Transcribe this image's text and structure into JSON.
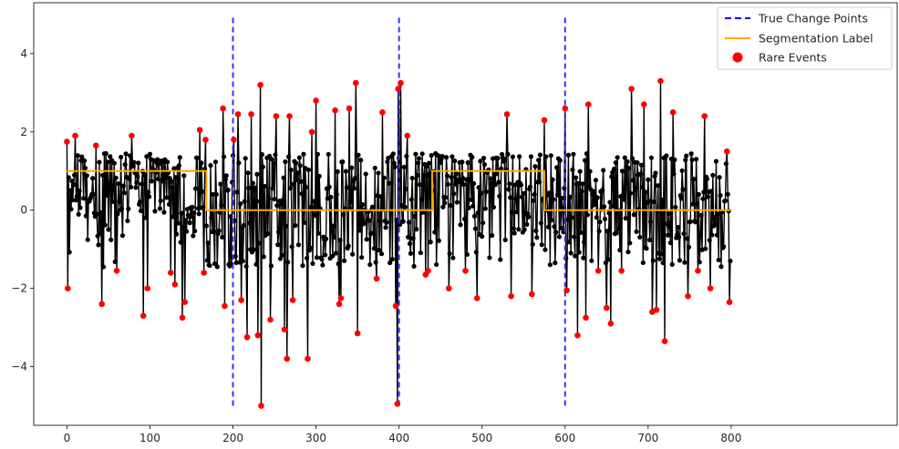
{
  "chart_data": {
    "type": "line",
    "title": "",
    "xlabel": "",
    "ylabel": "",
    "xlim": [
      -40,
      1000
    ],
    "ylim": [
      -5.5,
      5.3
    ],
    "x_ticks": [
      0,
      100,
      200,
      300,
      400,
      500,
      600,
      700,
      800
    ],
    "y_ticks": [
      -4,
      -2,
      0,
      2,
      4
    ],
    "grid": false,
    "legend_position": "top-right",
    "colors": {
      "signal": "#000000",
      "change_points": "#3333ff",
      "segmentation": "#ffa500",
      "rare_events": "#ff0000"
    },
    "legend": [
      {
        "label": "True Change Points",
        "style": "dashed-line",
        "color": "#0000ff"
      },
      {
        "label": "Segmentation Label",
        "style": "line",
        "color": "#ffa500"
      },
      {
        "label": "Rare Events",
        "style": "marker",
        "color": "#ff0000"
      }
    ],
    "change_points": {
      "name": "True Change Points",
      "x": [
        200,
        400,
        600
      ],
      "y_range": [
        -5,
        5
      ]
    },
    "segmentation": {
      "name": "Segmentation Label",
      "x": [
        0,
        168,
        168,
        440,
        440,
        575,
        575,
        799
      ],
      "y": [
        1,
        1,
        0,
        0,
        1,
        1,
        0,
        0
      ]
    },
    "signal": {
      "name": "signal",
      "n": 800,
      "rare_event_threshold": 1.5,
      "anchors": [
        [
          0,
          1.75
        ],
        [
          1,
          -2.0
        ],
        [
          4,
          0.5
        ],
        [
          10,
          1.9
        ],
        [
          20,
          0.3
        ],
        [
          35,
          1.65
        ],
        [
          42,
          -2.4
        ],
        [
          44,
          -1.45
        ],
        [
          60,
          -1.55
        ],
        [
          78,
          1.9
        ],
        [
          92,
          -2.7
        ],
        [
          97,
          -2.0
        ],
        [
          125,
          -1.6
        ],
        [
          130,
          -1.9
        ],
        [
          139,
          -2.75
        ],
        [
          142,
          -2.35
        ],
        [
          160,
          2.05
        ],
        [
          165,
          -1.6
        ],
        [
          167,
          1.8
        ],
        [
          188,
          2.6
        ],
        [
          190,
          -2.45
        ],
        [
          201,
          1.8
        ],
        [
          206,
          2.45
        ],
        [
          210,
          -2.3
        ],
        [
          217,
          -3.25
        ],
        [
          222,
          2.45
        ],
        [
          230,
          -3.2
        ],
        [
          233,
          3.2
        ],
        [
          234,
          -5.0
        ],
        [
          245,
          -2.8
        ],
        [
          252,
          2.4
        ],
        [
          262,
          -3.05
        ],
        [
          265,
          -3.8
        ],
        [
          268,
          2.4
        ],
        [
          272,
          -2.3
        ],
        [
          290,
          -3.8
        ],
        [
          295,
          2.0
        ],
        [
          300,
          2.8
        ],
        [
          323,
          2.55
        ],
        [
          328,
          -2.4
        ],
        [
          330,
          -2.25
        ],
        [
          340,
          2.6
        ],
        [
          348,
          3.25
        ],
        [
          350,
          -3.15
        ],
        [
          373,
          -1.75
        ],
        [
          380,
          2.5
        ],
        [
          396,
          -2.45
        ],
        [
          398,
          -4.95
        ],
        [
          399,
          3.1
        ],
        [
          402,
          3.25
        ],
        [
          410,
          1.9
        ],
        [
          432,
          -1.65
        ],
        [
          435,
          -1.55
        ],
        [
          460,
          -2.0
        ],
        [
          480,
          -1.55
        ],
        [
          494,
          -2.25
        ],
        [
          530,
          2.45
        ],
        [
          535,
          -2.2
        ],
        [
          560,
          -2.15
        ],
        [
          575,
          2.3
        ],
        [
          600,
          2.6
        ],
        [
          602,
          -2.05
        ],
        [
          615,
          -3.2
        ],
        [
          625,
          -2.75
        ],
        [
          628,
          2.7
        ],
        [
          640,
          -1.55
        ],
        [
          650,
          -2.5
        ],
        [
          655,
          -2.9
        ],
        [
          668,
          -1.55
        ],
        [
          680,
          3.1
        ],
        [
          695,
          2.7
        ],
        [
          705,
          -2.6
        ],
        [
          710,
          -2.55
        ],
        [
          715,
          3.3
        ],
        [
          720,
          -3.35
        ],
        [
          730,
          2.5
        ],
        [
          748,
          -2.2
        ],
        [
          760,
          -1.55
        ],
        [
          768,
          2.4
        ],
        [
          775,
          -2.0
        ],
        [
          795,
          1.5
        ],
        [
          798,
          -2.35
        ],
        [
          799,
          -1.3
        ]
      ]
    }
  }
}
